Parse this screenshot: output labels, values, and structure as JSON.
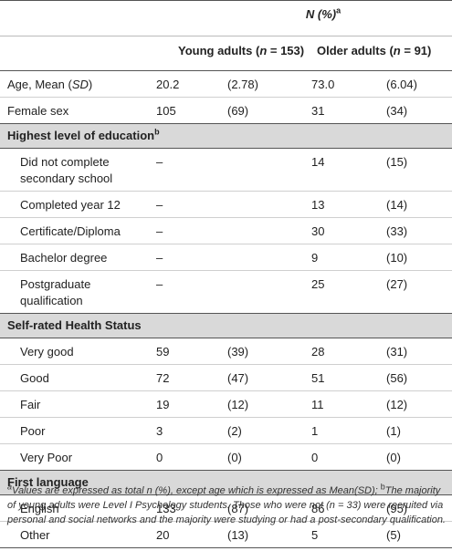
{
  "header": {
    "n_pct": "N (%)",
    "n_pct_sup": "a",
    "young_label": "Young adults (",
    "young_n": "n",
    "young_val": " = 153)",
    "older_label": "Older adults (",
    "older_n": "n",
    "older_val": " = 91)"
  },
  "rows_top": [
    {
      "label": "Age, Mean (",
      "label_it": "SD",
      "label_end": ")",
      "y_n": "20.2",
      "y_p": "(2.78)",
      "o_n": "73.0",
      "o_p": "(6.04)"
    },
    {
      "label": "Female sex",
      "y_n": "105",
      "y_p": "(69)",
      "o_n": "31",
      "o_p": "(34)"
    }
  ],
  "education": {
    "title": "Highest level of education",
    "title_sup": "b",
    "rows": [
      {
        "label": "Did not complete secondary school",
        "y_n": "–",
        "y_p": "",
        "o_n": "14",
        "o_p": "(15)"
      },
      {
        "label": "Completed year 12",
        "y_n": "–",
        "y_p": "",
        "o_n": "13",
        "o_p": "(14)"
      },
      {
        "label": "Certificate/Diploma",
        "y_n": "–",
        "y_p": "",
        "o_n": "30",
        "o_p": "(33)"
      },
      {
        "label": "Bachelor degree",
        "y_n": "–",
        "y_p": "",
        "o_n": "9",
        "o_p": "(10)"
      },
      {
        "label": "Postgraduate qualification",
        "y_n": "–",
        "y_p": "",
        "o_n": "25",
        "o_p": "(27)"
      }
    ]
  },
  "health": {
    "title": "Self-rated Health Status",
    "rows": [
      {
        "label": "Very good",
        "y_n": "59",
        "y_p": "(39)",
        "o_n": "28",
        "o_p": "(31)"
      },
      {
        "label": "Good",
        "y_n": "72",
        "y_p": "(47)",
        "o_n": "51",
        "o_p": "(56)"
      },
      {
        "label": "Fair",
        "y_n": "19",
        "y_p": "(12)",
        "o_n": "11",
        "o_p": "(12)"
      },
      {
        "label": "Poor",
        "y_n": "3",
        "y_p": "(2)",
        "o_n": "1",
        "o_p": "(1)"
      },
      {
        "label": "Very Poor",
        "y_n": "0",
        "y_p": "(0)",
        "o_n": "0",
        "o_p": "(0)"
      }
    ]
  },
  "language": {
    "title": "First language",
    "rows": [
      {
        "label": "English",
        "y_n": "133",
        "y_p": "(87)",
        "o_n": "86",
        "o_p": "(95)"
      },
      {
        "label": "Other",
        "y_n": "20",
        "y_p": "(13)",
        "o_n": "5",
        "o_p": "(5)"
      }
    ]
  },
  "footnote": {
    "a_sup": "a",
    "a_text": "Values are expressed as total n (%), except age which is expressed as Mean(SD); ",
    "b_sup": "b",
    "b_text": "The majority of young adults were Level I Psychology students. Those who were not (n = 33) were recruited via personal and social networks and the majority were studying or had a post-secondary qualification."
  }
}
